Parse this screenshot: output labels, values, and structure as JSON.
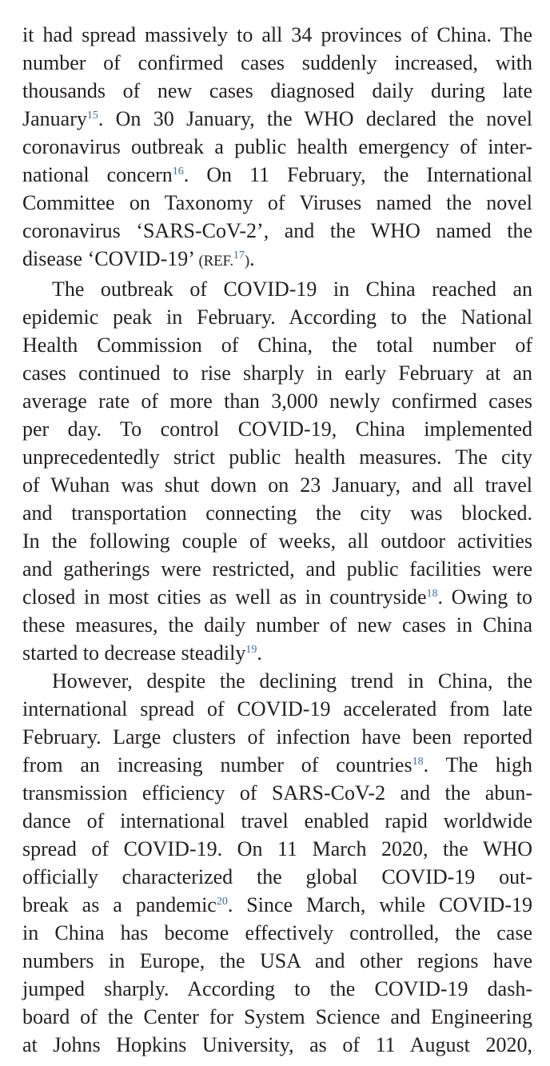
{
  "paragraphs": [
    {
      "lines": [
        {
          "parts": [
            {
              "t": "it had spread massively to all 34 provinces of China. The"
            }
          ]
        },
        {
          "parts": [
            {
              "t": "number of confirmed cases suddenly increased, with"
            }
          ]
        },
        {
          "parts": [
            {
              "t": "thousands of new cases diagnosed daily during late"
            }
          ]
        },
        {
          "parts": [
            {
              "t": "January"
            },
            {
              "sup": "15"
            },
            {
              "t": ". On 30 January, the WHO declared the novel"
            }
          ]
        },
        {
          "parts": [
            {
              "t": "coronavirus outbreak a public health emergency of inter-"
            }
          ]
        },
        {
          "parts": [
            {
              "t": "national concern"
            },
            {
              "sup": "16"
            },
            {
              "t": ". On 11 February, the International"
            }
          ]
        },
        {
          "parts": [
            {
              "t": "Committee on Taxonomy of Viruses named the novel"
            }
          ]
        },
        {
          "parts": [
            {
              "t": "coronavirus ‘SARS-CoV-2’, and the WHO named the"
            }
          ]
        },
        {
          "parts": [
            {
              "t": "disease ‘COVID-19’ "
            },
            {
              "small": "(REF."
            },
            {
              "sup": "17"
            },
            {
              "small": ")"
            },
            {
              "t": "."
            }
          ]
        }
      ]
    },
    {
      "lines": [
        {
          "parts": [
            {
              "t": "The outbreak of COVID-19 in China reached an"
            }
          ]
        },
        {
          "parts": [
            {
              "t": "epidemic peak in February. According to the National"
            }
          ]
        },
        {
          "parts": [
            {
              "t": "Health Commission of China, the total number of"
            }
          ]
        },
        {
          "parts": [
            {
              "t": "cases continued to rise sharply in early February at an"
            }
          ]
        },
        {
          "parts": [
            {
              "t": "average rate of more than 3,000 newly confirmed cases"
            }
          ]
        },
        {
          "parts": [
            {
              "t": "per day. To control COVID-19, China implemented"
            }
          ]
        },
        {
          "parts": [
            {
              "t": "unprecedentedly strict public health measures. The city"
            }
          ]
        },
        {
          "parts": [
            {
              "t": "of Wuhan was shut down on 23 January, and all travel"
            }
          ]
        },
        {
          "parts": [
            {
              "t": "and transportation connecting the city was blocked."
            }
          ]
        },
        {
          "parts": [
            {
              "t": "In the following couple of weeks, all outdoor activities"
            }
          ]
        },
        {
          "parts": [
            {
              "t": "and gatherings were restricted, and public facilities were"
            }
          ]
        },
        {
          "parts": [
            {
              "t": "closed in most cities as well as in countryside"
            },
            {
              "sup": "18"
            },
            {
              "t": ". Owing to"
            }
          ]
        },
        {
          "parts": [
            {
              "t": "these measures, the daily number of new cases in China"
            }
          ]
        },
        {
          "parts": [
            {
              "t": "started to decrease steadily"
            },
            {
              "sup": "19"
            },
            {
              "t": "."
            }
          ]
        }
      ]
    },
    {
      "lines": [
        {
          "parts": [
            {
              "t": "However, despite the declining trend in China, the"
            }
          ]
        },
        {
          "parts": [
            {
              "t": "international spread of COVID-19 accelerated from late"
            }
          ]
        },
        {
          "parts": [
            {
              "t": "February. Large clusters of infection have been reported"
            }
          ]
        },
        {
          "parts": [
            {
              "t": "from an increasing number of countries"
            },
            {
              "sup": "18"
            },
            {
              "t": ". The high"
            }
          ]
        },
        {
          "parts": [
            {
              "t": "transmission efficiency of SARS-CoV-2 and the abun-"
            }
          ]
        },
        {
          "parts": [
            {
              "t": "dance of international travel enabled rapid worldwide"
            }
          ]
        },
        {
          "parts": [
            {
              "t": "spread of COVID-19. On 11 March 2020, the WHO"
            }
          ]
        },
        {
          "parts": [
            {
              "t": "officially characterized the global COVID-19 out-"
            }
          ]
        },
        {
          "parts": [
            {
              "t": "break as a pandemic"
            },
            {
              "sup": "20"
            },
            {
              "t": ". Since March, while COVID-19"
            }
          ]
        },
        {
          "parts": [
            {
              "t": "in China has become effectively controlled, the case"
            }
          ]
        },
        {
          "parts": [
            {
              "t": "numbers in Europe, the USA and other regions have"
            }
          ]
        },
        {
          "parts": [
            {
              "t": "jumped sharply. According to the COVID-19 dash-"
            }
          ]
        },
        {
          "parts": [
            {
              "t": "board of the Center for System Science and Engineering"
            }
          ]
        },
        {
          "parts": [
            {
              "t": "at Johns Hopkins University, as of 11 August 2020,"
            }
          ]
        }
      ]
    }
  ],
  "paragraph_config": [
    {
      "indent": false,
      "last_line_ragged": true
    },
    {
      "indent": true,
      "last_line_ragged": true
    },
    {
      "indent": true,
      "last_line_ragged": false
    }
  ],
  "colors": {
    "text": "#231f20",
    "reference_superscript": "#3a6ea5"
  }
}
